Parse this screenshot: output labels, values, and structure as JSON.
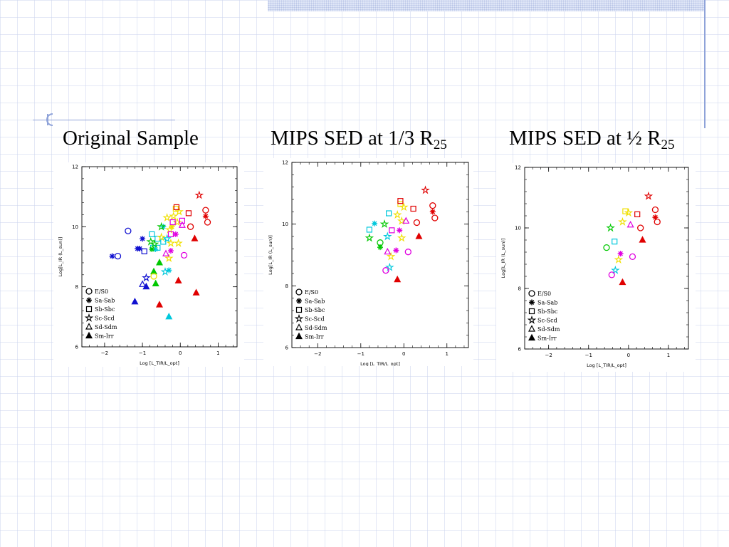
{
  "titles": [
    {
      "text": "Original Sample",
      "sub": ""
    },
    {
      "text": "MIPS SED  at 1/3 R",
      "sub": "25"
    },
    {
      "text": "MIPS SED at ½ R",
      "sub": "25"
    }
  ],
  "colors": {
    "morph": {
      "blue": "#1010d0",
      "cyan": "#00c8dc",
      "green": "#00c800",
      "yellow": "#f0e000",
      "magenta": "#e000e0",
      "red": "#e00000"
    }
  },
  "chart_data": [
    {
      "type": "scatter",
      "title": "Original Sample",
      "xlabel": "Log [L_TIR/L_opt]",
      "ylabel": "Log[L_IR (L_sun)]",
      "xlim": [
        -2.6,
        1.5
      ],
      "ylim": [
        6,
        12
      ],
      "xticks": [
        -2,
        -1,
        0,
        1
      ],
      "yticks": [
        6,
        8,
        10,
        12
      ],
      "grid": false,
      "legend": {
        "placement": "bottom-left",
        "entries": [
          {
            "marker": "circle",
            "label": "E/S0"
          },
          {
            "marker": "asterisk",
            "label": "Sa-Sab"
          },
          {
            "marker": "square",
            "label": "Sb-Sbc"
          },
          {
            "marker": "star",
            "label": "Sc-Scd"
          },
          {
            "marker": "triangle",
            "label": "Sd-Sdm"
          },
          {
            "marker": "filled-triangle",
            "label": "Sm-Irr"
          }
        ]
      },
      "points": [
        {
          "x": -1.65,
          "y": 9.02,
          "m": "circle",
          "c": "blue"
        },
        {
          "x": -1.38,
          "y": 9.86,
          "m": "circle",
          "c": "blue"
        },
        {
          "x": -1.8,
          "y": 9.02,
          "m": "asterisk",
          "c": "blue"
        },
        {
          "x": -1.13,
          "y": 9.27,
          "m": "asterisk",
          "c": "blue"
        },
        {
          "x": -1.07,
          "y": 9.27,
          "m": "asterisk",
          "c": "blue"
        },
        {
          "x": -1.0,
          "y": 9.6,
          "m": "asterisk",
          "c": "blue"
        },
        {
          "x": -0.95,
          "y": 9.18,
          "m": "square",
          "c": "blue"
        },
        {
          "x": -0.9,
          "y": 8.3,
          "m": "star",
          "c": "blue"
        },
        {
          "x": -1.0,
          "y": 8.08,
          "m": "triangle",
          "c": "blue"
        },
        {
          "x": -0.9,
          "y": 8.0,
          "m": "ftriangle",
          "c": "blue"
        },
        {
          "x": -1.2,
          "y": 7.5,
          "m": "ftriangle",
          "c": "blue"
        },
        {
          "x": -0.45,
          "y": 10.0,
          "m": "asterisk",
          "c": "cyan"
        },
        {
          "x": -0.6,
          "y": 9.6,
          "m": "square",
          "c": "cyan"
        },
        {
          "x": -0.75,
          "y": 9.75,
          "m": "square",
          "c": "cyan"
        },
        {
          "x": -0.6,
          "y": 9.3,
          "m": "square",
          "c": "cyan"
        },
        {
          "x": -0.72,
          "y": 9.3,
          "m": "square",
          "c": "cyan"
        },
        {
          "x": -0.66,
          "y": 9.25,
          "m": "asterisk",
          "c": "cyan"
        },
        {
          "x": -0.45,
          "y": 9.5,
          "m": "square",
          "c": "cyan"
        },
        {
          "x": -0.35,
          "y": 9.6,
          "m": "star",
          "c": "cyan"
        },
        {
          "x": -0.4,
          "y": 8.5,
          "m": "star",
          "c": "cyan"
        },
        {
          "x": -0.3,
          "y": 8.55,
          "m": "asterisk",
          "c": "cyan"
        },
        {
          "x": -0.3,
          "y": 7.0,
          "m": "ftriangle",
          "c": "cyan"
        },
        {
          "x": -0.5,
          "y": 10.0,
          "m": "star",
          "c": "green"
        },
        {
          "x": -0.78,
          "y": 9.5,
          "m": "star",
          "c": "green"
        },
        {
          "x": -0.68,
          "y": 9.42,
          "m": "star",
          "c": "green"
        },
        {
          "x": -0.75,
          "y": 9.25,
          "m": "asterisk",
          "c": "green"
        },
        {
          "x": -0.7,
          "y": 8.5,
          "m": "ftriangle",
          "c": "green"
        },
        {
          "x": -0.55,
          "y": 8.8,
          "m": "ftriangle",
          "c": "green"
        },
        {
          "x": -0.65,
          "y": 8.1,
          "m": "ftriangle",
          "c": "green"
        },
        {
          "x": -0.7,
          "y": 8.35,
          "m": "circle",
          "c": "yellow"
        },
        {
          "x": -0.35,
          "y": 10.3,
          "m": "star",
          "c": "yellow"
        },
        {
          "x": -0.12,
          "y": 10.6,
          "m": "square",
          "c": "yellow"
        },
        {
          "x": -0.03,
          "y": 10.5,
          "m": "star",
          "c": "yellow"
        },
        {
          "x": -0.18,
          "y": 10.35,
          "m": "star",
          "c": "yellow"
        },
        {
          "x": -0.08,
          "y": 10.15,
          "m": "star",
          "c": "yellow"
        },
        {
          "x": -0.22,
          "y": 10.0,
          "m": "asterisk",
          "c": "yellow"
        },
        {
          "x": -0.28,
          "y": 9.9,
          "m": "star",
          "c": "yellow"
        },
        {
          "x": -0.05,
          "y": 9.45,
          "m": "star",
          "c": "yellow"
        },
        {
          "x": -0.3,
          "y": 8.95,
          "m": "star",
          "c": "yellow"
        },
        {
          "x": -0.25,
          "y": 9.45,
          "m": "star",
          "c": "yellow"
        },
        {
          "x": -0.5,
          "y": 9.65,
          "m": "star",
          "c": "yellow"
        },
        {
          "x": -0.2,
          "y": 10.15,
          "m": "square",
          "c": "magenta"
        },
        {
          "x": -0.25,
          "y": 9.75,
          "m": "square",
          "c": "magenta"
        },
        {
          "x": 0.05,
          "y": 10.2,
          "m": "square",
          "c": "magenta"
        },
        {
          "x": -0.12,
          "y": 9.75,
          "m": "asterisk",
          "c": "magenta"
        },
        {
          "x": 0.05,
          "y": 10.05,
          "m": "triangle",
          "c": "magenta"
        },
        {
          "x": -0.25,
          "y": 9.2,
          "m": "asterisk",
          "c": "magenta"
        },
        {
          "x": -0.38,
          "y": 9.1,
          "m": "triangle",
          "c": "magenta"
        },
        {
          "x": 0.1,
          "y": 9.05,
          "m": "circle",
          "c": "magenta"
        },
        {
          "x": -0.1,
          "y": 10.65,
          "m": "square",
          "c": "red"
        },
        {
          "x": 0.22,
          "y": 10.45,
          "m": "square",
          "c": "red"
        },
        {
          "x": 0.27,
          "y": 10.0,
          "m": "circle",
          "c": "red"
        },
        {
          "x": 0.5,
          "y": 11.05,
          "m": "star",
          "c": "red"
        },
        {
          "x": 0.67,
          "y": 10.55,
          "m": "circle",
          "c": "red"
        },
        {
          "x": 0.67,
          "y": 10.35,
          "m": "asterisk",
          "c": "red"
        },
        {
          "x": 0.72,
          "y": 10.15,
          "m": "circle",
          "c": "red"
        },
        {
          "x": 0.38,
          "y": 9.6,
          "m": "ftriangle",
          "c": "red"
        },
        {
          "x": -0.05,
          "y": 8.2,
          "m": "ftriangle",
          "c": "red"
        },
        {
          "x": -0.55,
          "y": 7.4,
          "m": "ftriangle",
          "c": "red"
        },
        {
          "x": 0.42,
          "y": 7.8,
          "m": "ftriangle",
          "c": "red"
        }
      ]
    },
    {
      "type": "scatter",
      "title": "MIPS SED  at 1/3 R25",
      "xlabel": "Log [L_TIR/L_opt]",
      "ylabel": "Log[L_IR (L_sun)]",
      "xlim": [
        -2.6,
        1.5
      ],
      "ylim": [
        6,
        12
      ],
      "xticks": [
        -2,
        -1,
        0,
        1
      ],
      "yticks": [
        6,
        8,
        10,
        12
      ],
      "grid": false,
      "legend": {
        "placement": "bottom-left",
        "entries": [
          {
            "marker": "circle",
            "label": "E/S0"
          },
          {
            "marker": "asterisk",
            "label": "Sa-Sab"
          },
          {
            "marker": "square",
            "label": "Sb-Sbc"
          },
          {
            "marker": "star",
            "label": "Sc-Scd"
          },
          {
            "marker": "triangle",
            "label": "Sd-Sdm"
          },
          {
            "marker": "filled-triangle",
            "label": "Sm-Irr"
          }
        ]
      },
      "points": [
        {
          "x": -0.8,
          "y": 9.82,
          "m": "square",
          "c": "cyan"
        },
        {
          "x": -0.68,
          "y": 10.02,
          "m": "asterisk",
          "c": "cyan"
        },
        {
          "x": -0.35,
          "y": 10.35,
          "m": "square",
          "c": "cyan"
        },
        {
          "x": -0.38,
          "y": 9.6,
          "m": "star",
          "c": "cyan"
        },
        {
          "x": -0.33,
          "y": 8.6,
          "m": "star",
          "c": "cyan"
        },
        {
          "x": -0.55,
          "y": 9.4,
          "m": "circle",
          "c": "green"
        },
        {
          "x": -0.45,
          "y": 10.0,
          "m": "star",
          "c": "green"
        },
        {
          "x": -0.8,
          "y": 9.55,
          "m": "star",
          "c": "green"
        },
        {
          "x": -0.55,
          "y": 9.25,
          "m": "asterisk",
          "c": "green"
        },
        {
          "x": -0.08,
          "y": 10.65,
          "m": "square",
          "c": "yellow"
        },
        {
          "x": 0.0,
          "y": 10.55,
          "m": "star",
          "c": "yellow"
        },
        {
          "x": -0.15,
          "y": 10.3,
          "m": "star",
          "c": "yellow"
        },
        {
          "x": -0.05,
          "y": 10.1,
          "m": "star",
          "c": "yellow"
        },
        {
          "x": -0.05,
          "y": 9.55,
          "m": "star",
          "c": "yellow"
        },
        {
          "x": -0.3,
          "y": 8.95,
          "m": "star",
          "c": "yellow"
        },
        {
          "x": -0.28,
          "y": 9.8,
          "m": "square",
          "c": "magenta"
        },
        {
          "x": -0.1,
          "y": 9.8,
          "m": "asterisk",
          "c": "magenta"
        },
        {
          "x": 0.05,
          "y": 10.1,
          "m": "triangle",
          "c": "magenta"
        },
        {
          "x": -0.38,
          "y": 9.1,
          "m": "triangle",
          "c": "magenta"
        },
        {
          "x": -0.18,
          "y": 9.15,
          "m": "asterisk",
          "c": "magenta"
        },
        {
          "x": 0.1,
          "y": 9.1,
          "m": "circle",
          "c": "magenta"
        },
        {
          "x": -0.42,
          "y": 8.5,
          "m": "circle",
          "c": "magenta"
        },
        {
          "x": -0.08,
          "y": 10.75,
          "m": "square",
          "c": "red"
        },
        {
          "x": 0.22,
          "y": 10.5,
          "m": "square",
          "c": "red"
        },
        {
          "x": 0.3,
          "y": 10.05,
          "m": "circle",
          "c": "red"
        },
        {
          "x": 0.5,
          "y": 11.1,
          "m": "star",
          "c": "red"
        },
        {
          "x": 0.67,
          "y": 10.6,
          "m": "circle",
          "c": "red"
        },
        {
          "x": 0.67,
          "y": 10.4,
          "m": "asterisk",
          "c": "red"
        },
        {
          "x": 0.72,
          "y": 10.2,
          "m": "circle",
          "c": "red"
        },
        {
          "x": 0.35,
          "y": 9.6,
          "m": "ftriangle",
          "c": "red"
        },
        {
          "x": -0.15,
          "y": 8.2,
          "m": "ftriangle",
          "c": "red"
        }
      ]
    },
    {
      "type": "scatter",
      "title": "MIPS SED at ½ R25",
      "xlabel": "Log [L_TIR/L_opt]",
      "ylabel": "Log[L_IR (L_sun)]",
      "xlim": [
        -2.6,
        1.5
      ],
      "ylim": [
        6,
        12
      ],
      "xticks": [
        -2,
        -1,
        0,
        1
      ],
      "yticks": [
        6,
        8,
        10,
        12
      ],
      "grid": false,
      "legend": {
        "placement": "bottom-left",
        "entries": [
          {
            "marker": "circle",
            "label": "E/S0"
          },
          {
            "marker": "asterisk",
            "label": "Sa-Sab"
          },
          {
            "marker": "square",
            "label": "Sb-Sbc"
          },
          {
            "marker": "star",
            "label": "Sc-Scd"
          },
          {
            "marker": "triangle",
            "label": "Sd-Sdm"
          },
          {
            "marker": "filled-triangle",
            "label": "Sm-Irr"
          }
        ]
      },
      "points": [
        {
          "x": -0.35,
          "y": 9.55,
          "m": "square",
          "c": "cyan"
        },
        {
          "x": -0.33,
          "y": 8.6,
          "m": "star",
          "c": "cyan"
        },
        {
          "x": -0.55,
          "y": 9.35,
          "m": "circle",
          "c": "green"
        },
        {
          "x": -0.45,
          "y": 10.0,
          "m": "star",
          "c": "green"
        },
        {
          "x": -0.08,
          "y": 10.55,
          "m": "square",
          "c": "yellow"
        },
        {
          "x": 0.0,
          "y": 10.5,
          "m": "star",
          "c": "yellow"
        },
        {
          "x": -0.15,
          "y": 10.2,
          "m": "star",
          "c": "yellow"
        },
        {
          "x": -0.25,
          "y": 8.95,
          "m": "star",
          "c": "yellow"
        },
        {
          "x": 0.05,
          "y": 10.1,
          "m": "triangle",
          "c": "magenta"
        },
        {
          "x": -0.2,
          "y": 9.15,
          "m": "asterisk",
          "c": "magenta"
        },
        {
          "x": 0.1,
          "y": 9.05,
          "m": "circle",
          "c": "magenta"
        },
        {
          "x": -0.42,
          "y": 8.45,
          "m": "circle",
          "c": "magenta"
        },
        {
          "x": 0.22,
          "y": 10.45,
          "m": "square",
          "c": "red"
        },
        {
          "x": 0.3,
          "y": 10.0,
          "m": "circle",
          "c": "red"
        },
        {
          "x": 0.5,
          "y": 11.05,
          "m": "star",
          "c": "red"
        },
        {
          "x": 0.67,
          "y": 10.6,
          "m": "circle",
          "c": "red"
        },
        {
          "x": 0.67,
          "y": 10.35,
          "m": "asterisk",
          "c": "red"
        },
        {
          "x": 0.72,
          "y": 10.2,
          "m": "circle",
          "c": "red"
        },
        {
          "x": 0.35,
          "y": 9.6,
          "m": "ftriangle",
          "c": "red"
        },
        {
          "x": -0.15,
          "y": 8.2,
          "m": "ftriangle",
          "c": "red"
        }
      ]
    }
  ]
}
